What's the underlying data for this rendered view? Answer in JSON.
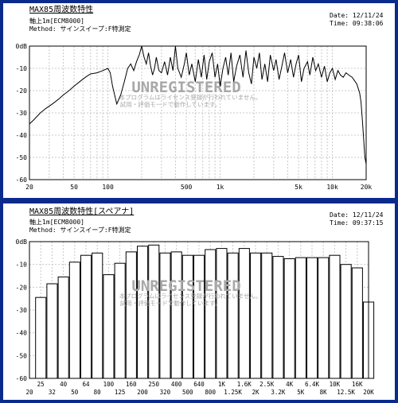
{
  "charts": [
    {
      "title": "MAX85周波数特性",
      "line2": "軸上1m[ECM8000]",
      "method_label": "Method:",
      "method_value": "サインスイープ:F特測定",
      "date_label": "Date:",
      "date_value": "12/11/24",
      "time_label": "Time:",
      "time_value": "09:38:06",
      "watermark": "UNREGISTERED",
      "notice_line1": "本プログラムはライセンス登録が行われていません。",
      "notice_line2": "試用・評価モードで動作しています。"
    },
    {
      "title": "MAX85周波数特性[スペアナ]",
      "line2": "軸上1m[ECM8000]",
      "method_label": "Method:",
      "method_value": "サインスイープ:F特測定",
      "date_label": "Date:",
      "date_value": "12/11/24",
      "time_label": "Time:",
      "time_value": "09:37:15",
      "watermark": "UNREGISTERED",
      "notice_line1": "本プログラムはライセンス登録が行われていません。",
      "notice_line2": "試用・評価モードで動作しています。"
    }
  ],
  "chart_data": [
    {
      "type": "line",
      "y_tick_labels": [
        "0dB",
        "-10",
        "-20",
        "-30",
        "-40",
        "-50",
        "-60"
      ],
      "y_ticks": [
        0,
        -10,
        -20,
        -30,
        -40,
        -50,
        -60
      ],
      "ylim": [
        -60,
        0
      ],
      "xscale": "log",
      "xlim": [
        20,
        20000
      ],
      "x_ticks": [
        20,
        50,
        100,
        500,
        1000,
        5000,
        10000,
        20000
      ],
      "x_tick_labels": [
        "20",
        "50",
        "100",
        "500",
        "1k",
        "5k",
        "10k",
        "20k"
      ],
      "grid": true,
      "color": "#000000",
      "series": [
        {
          "x": [
            20,
            22,
            25,
            28,
            32,
            36,
            40,
            45,
            50,
            56,
            63,
            70,
            80,
            90,
            100,
            105,
            110,
            120,
            130,
            140,
            150,
            160,
            170,
            180,
            190,
            200,
            210,
            220,
            230,
            240,
            250,
            260,
            270,
            285,
            300,
            320,
            340,
            360,
            380,
            400,
            420,
            450,
            480,
            500,
            530,
            560,
            600,
            640,
            680,
            720,
            760,
            800,
            850,
            900,
            950,
            1000,
            1060,
            1120,
            1180,
            1250,
            1320,
            1400,
            1500,
            1600,
            1700,
            1800,
            1900,
            2000,
            2120,
            2240,
            2360,
            2500,
            2650,
            2800,
            3000,
            3150,
            3350,
            3550,
            3750,
            4000,
            4250,
            4500,
            4750,
            5000,
            5300,
            5600,
            6000,
            6300,
            6700,
            7100,
            7500,
            8000,
            8500,
            9000,
            9500,
            10000,
            10600,
            11200,
            11800,
            12500,
            13200,
            14000,
            15000,
            16000,
            16500,
            17000,
            17500,
            18000,
            18500,
            19000,
            19500,
            20000
          ],
          "y": [
            -35,
            -33,
            -30,
            -28,
            -26,
            -24,
            -22,
            -20,
            -18,
            -16,
            -14,
            -12.5,
            -12,
            -11,
            -10,
            -12,
            -18,
            -26,
            -22,
            -16,
            -10,
            -8,
            -11,
            -7,
            -4,
            0,
            -5,
            -8,
            -3,
            -9,
            -13,
            -10,
            -5,
            -11,
            -12,
            -7,
            -13,
            -5,
            -11,
            0,
            -10,
            -14,
            -8,
            -3,
            -13,
            -8,
            -16,
            -6,
            -14,
            -4,
            -15,
            -7,
            -3,
            -14,
            -8,
            -18,
            -10,
            -5,
            -13,
            -3,
            -16,
            -9,
            -4,
            -14,
            -2,
            -12,
            -17,
            -5,
            -10,
            -3,
            -15,
            -8,
            -16,
            -4,
            -11,
            -6,
            -15,
            -9,
            -3,
            -12,
            -6,
            -14,
            -8,
            -4,
            -16,
            -10,
            -7,
            -13,
            -5,
            -11,
            -8,
            -14,
            -9,
            -16,
            -12,
            -10,
            -15,
            -11,
            -13,
            -14,
            -12,
            -13,
            -14,
            -16,
            -17,
            -19,
            -21,
            -25,
            -33,
            -42,
            -50,
            -53
          ]
        }
      ]
    },
    {
      "type": "bar",
      "y_tick_labels": [
        "0dB",
        "-10",
        "-20",
        "-30",
        "-40",
        "-50",
        "-60"
      ],
      "y_ticks": [
        0,
        -10,
        -20,
        -30,
        -40,
        -50,
        -60
      ],
      "ylim": [
        -60,
        0
      ],
      "grid": true,
      "categories": [
        "20",
        "25",
        "32",
        "40",
        "50",
        "64",
        "80",
        "100",
        "125",
        "160",
        "200",
        "250",
        "320",
        "400",
        "500",
        "640",
        "800",
        "1K",
        "1.25K",
        "1.6K",
        "2K",
        "2.5K",
        "3.2K",
        "4K",
        "5K",
        "6.4K",
        "8K",
        "10K",
        "12.5K",
        "16K",
        "20K"
      ],
      "values": [
        -60,
        -24.5,
        -18.5,
        -15.5,
        -9,
        -6,
        -5,
        -14.5,
        -9.5,
        -4.5,
        -2,
        -1.5,
        -5,
        -4.5,
        -6,
        -6,
        -3.5,
        -3,
        -5,
        -3,
        -5,
        -5,
        -6.5,
        -7.5,
        -7,
        -7,
        -7,
        -6,
        -10,
        -11.5,
        -26.5
      ]
    }
  ]
}
